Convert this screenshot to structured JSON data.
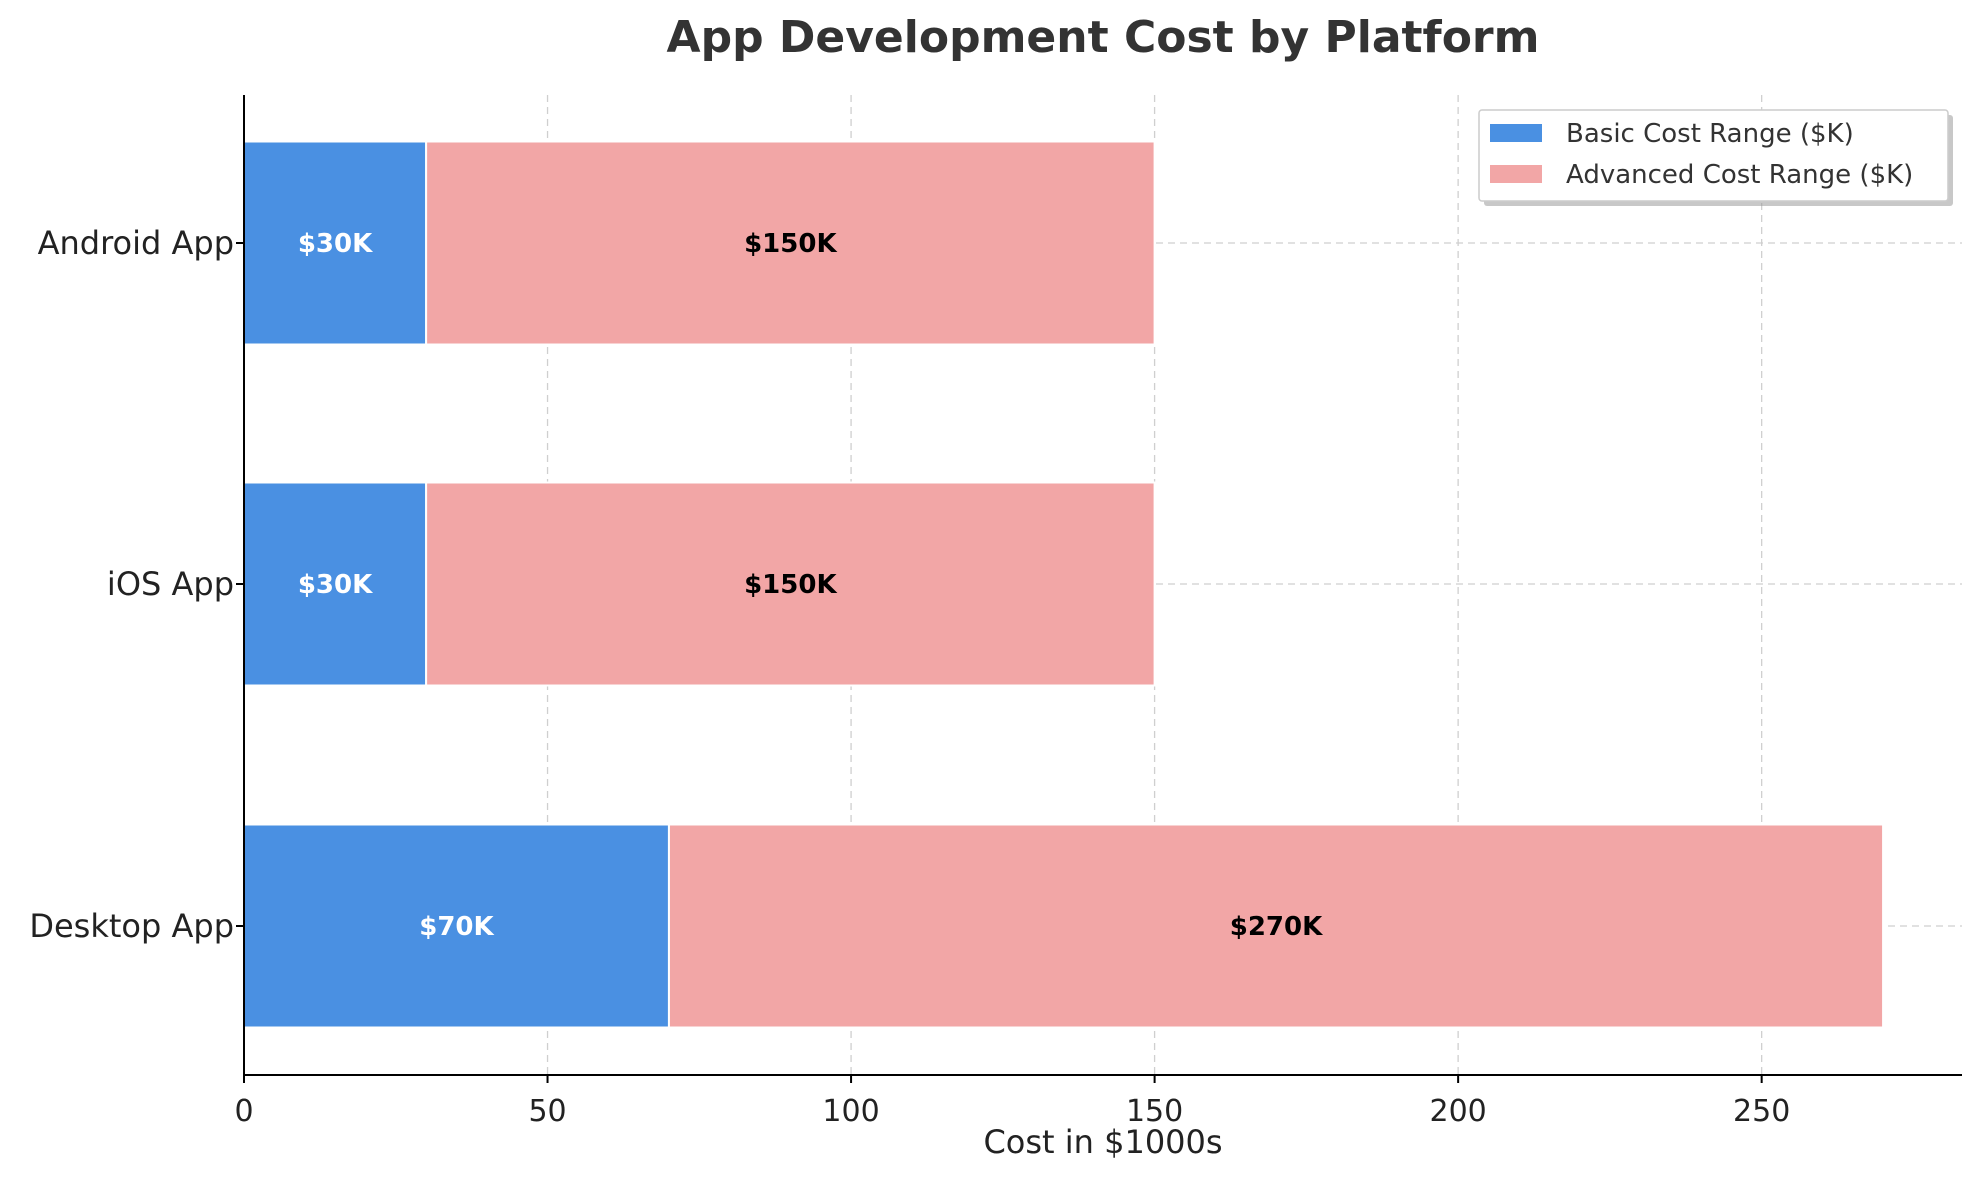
{
  "chart_data": {
    "type": "bar",
    "orientation": "horizontal",
    "stacked": true,
    "title": "App Development Cost by Platform",
    "xlabel": "Cost in $1000s",
    "ylabel": "",
    "categories": [
      "Android App",
      "iOS App",
      "Desktop App"
    ],
    "series": [
      {
        "name": "Basic Cost Range ($K)",
        "values": [
          30,
          30,
          70
        ],
        "labels": [
          "$30K",
          "$30K",
          "$70K"
        ],
        "color": "#4a90e2",
        "label_color": "#ffffff"
      },
      {
        "name": "Advanced Cost Range ($K)",
        "values": [
          120,
          120,
          200
        ],
        "labels": [
          "$150K",
          "$150K",
          "$270K"
        ],
        "color": "#f2a6a6",
        "label_color": "#000000"
      }
    ],
    "xlim": [
      0,
      283
    ],
    "xticks": [
      0,
      50,
      100,
      150,
      200,
      250
    ],
    "grid": true,
    "legend_position": "top-right"
  }
}
